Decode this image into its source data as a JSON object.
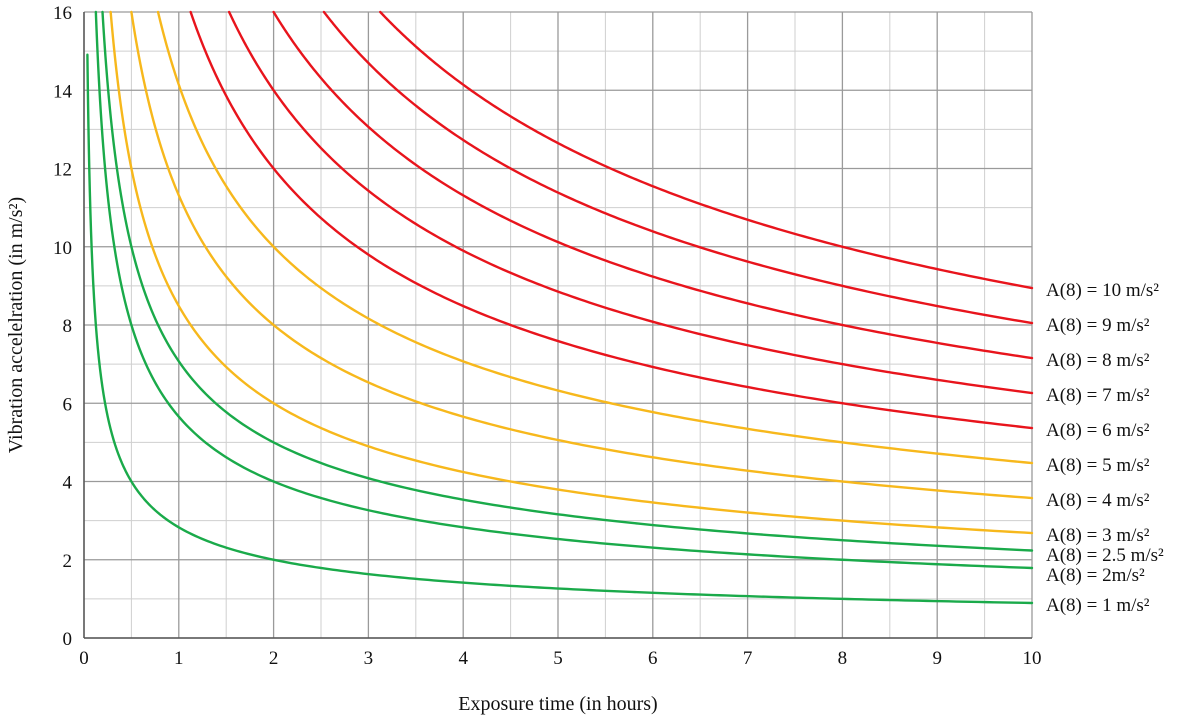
{
  "chart_data": {
    "type": "line",
    "title": "",
    "xlabel": "Exposure time (in hours)",
    "ylabel": "Vibration accelelration (in m/s²)",
    "xlim": [
      0,
      10
    ],
    "ylim": [
      0,
      16
    ],
    "x_ticks": [
      "0",
      "1",
      "2",
      "3",
      "4",
      "5",
      "6",
      "7",
      "8",
      "9",
      "10"
    ],
    "y_ticks": [
      "0",
      "2",
      "4",
      "6",
      "8",
      "10",
      "12",
      "14",
      "16"
    ],
    "grid": true,
    "legend": "right-of-curves",
    "formula": "a = A8 * sqrt(8 / t)",
    "colors": {
      "green": "#1aaa4a",
      "yellow": "#f7b81c",
      "red": "#e8141c"
    },
    "series": [
      {
        "label": "A(8) = 1 m/s²",
        "a8": 1,
        "color": "#1aaa4a",
        "x": [
          0.036,
          0.5,
          1,
          2,
          4,
          6,
          8,
          10
        ],
        "y": [
          14.9,
          4.0,
          2.83,
          2.0,
          1.41,
          1.15,
          1.0,
          0.89
        ]
      },
      {
        "label": "A(8) = 2m/s²",
        "a8": 2,
        "color": "#1aaa4a",
        "x": [
          0.125,
          0.5,
          1,
          2,
          4,
          6,
          8,
          10
        ],
        "y": [
          16,
          8.0,
          5.66,
          4.0,
          2.83,
          2.31,
          2.0,
          1.79
        ]
      },
      {
        "label": "A(8) = 2.5 m/s²",
        "a8": 2.5,
        "color": "#1aaa4a",
        "x": [
          0.195,
          0.5,
          1,
          2,
          4,
          6,
          8,
          10
        ],
        "y": [
          16,
          10.0,
          7.07,
          5.0,
          3.54,
          2.89,
          2.5,
          2.24
        ]
      },
      {
        "label": "A(8) = 3 m/s²",
        "a8": 3,
        "color": "#f7b81c",
        "x": [
          0.281,
          0.5,
          1,
          2,
          4,
          6,
          8,
          10
        ],
        "y": [
          16,
          12.0,
          8.49,
          6.0,
          4.24,
          3.46,
          3.0,
          2.68
        ]
      },
      {
        "label": "A(8) = 4 m/s²",
        "a8": 4,
        "color": "#f7b81c",
        "x": [
          0.5,
          1,
          2,
          4,
          6,
          8,
          10
        ],
        "y": [
          16,
          11.31,
          8.0,
          5.66,
          4.62,
          4.0,
          3.58
        ]
      },
      {
        "label": "A(8) = 5 m/s²",
        "a8": 5,
        "color": "#f7b81c",
        "x": [
          0.781,
          1,
          2,
          4,
          6,
          8,
          10
        ],
        "y": [
          16,
          14.14,
          10.0,
          7.07,
          5.77,
          5.0,
          4.47
        ]
      },
      {
        "label": "A(8) = 6 m/s²",
        "a8": 6,
        "color": "#e8141c",
        "x": [
          1.125,
          2,
          4,
          6,
          8,
          10
        ],
        "y": [
          16,
          12.0,
          8.49,
          6.93,
          6.0,
          5.37
        ]
      },
      {
        "label": "A(8) = 7 m/s²",
        "a8": 7,
        "color": "#e8141c",
        "x": [
          1.531,
          2,
          4,
          6,
          8,
          10
        ],
        "y": [
          16,
          14.0,
          9.9,
          8.08,
          7.0,
          6.26
        ]
      },
      {
        "label": "A(8) = 8 m/s²",
        "a8": 8,
        "color": "#e8141c",
        "x": [
          2.0,
          4,
          6,
          8,
          10
        ],
        "y": [
          16,
          11.31,
          9.24,
          8.0,
          7.16
        ]
      },
      {
        "label": "A(8) = 9 m/s²",
        "a8": 9,
        "color": "#e8141c",
        "x": [
          2.531,
          4,
          6,
          8,
          10
        ],
        "y": [
          16,
          12.73,
          10.39,
          9.0,
          8.05
        ]
      },
      {
        "label": "A(8) = 10 m/s²",
        "a8": 10,
        "color": "#e8141c",
        "x": [
          3.125,
          4,
          6,
          8,
          10
        ],
        "y": [
          16,
          14.14,
          11.55,
          10.0,
          8.94
        ]
      }
    ]
  }
}
